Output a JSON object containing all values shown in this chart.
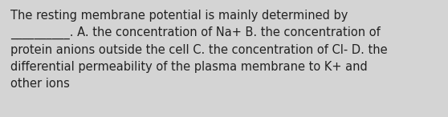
{
  "text": "The resting membrane potential is mainly determined by\n__________. A. the concentration of Na+ B. the concentration of\nprotein anions outside the cell C. the concentration of Cl- D. the\ndifferential permeability of the plasma membrane to K+ and\nother ions",
  "background_color": "#d4d4d4",
  "text_color": "#222222",
  "font_size": 10.5,
  "fig_width": 5.58,
  "fig_height": 1.46,
  "dpi": 100
}
